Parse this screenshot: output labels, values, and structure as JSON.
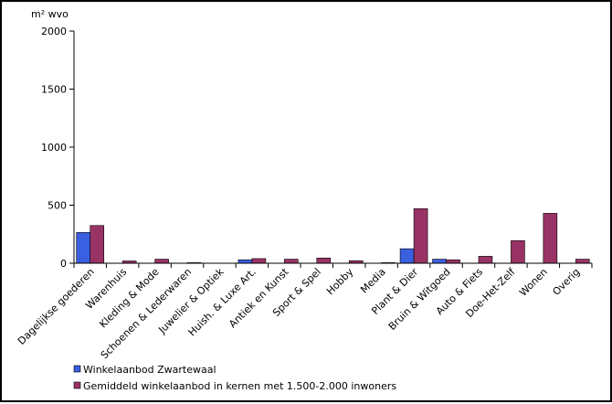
{
  "chart_data": {
    "type": "bar",
    "title": "",
    "ylabel": "m² wvo",
    "xlabel": "",
    "ylim": [
      0,
      2000
    ],
    "yticks": [
      0,
      500,
      1000,
      1500,
      2000
    ],
    "grid": false,
    "legend_position": "bottom-left",
    "categories": [
      "Dagelijkse goederen",
      "Warenhuis",
      "Kleding & Mode",
      "Schoenen & Lederwaren",
      "Juwelier & Optiek",
      "Huish. & Luxe Art.",
      "Antiek en Kunst",
      "Sport & Spel",
      "Hobby",
      "Media",
      "Plant & Dier",
      "Bruin & Witgoed",
      "Auto & Fiets",
      "Doe-Het-Zelf",
      "Wonen",
      "Overig"
    ],
    "series": [
      {
        "name": "Winkelaanbod Zwartewaal",
        "color": "#3a5fe0",
        "values": [
          265,
          0,
          0,
          0,
          0,
          30,
          0,
          0,
          0,
          0,
          125,
          35,
          0,
          0,
          0,
          0
        ]
      },
      {
        "name": "Gemiddeld winkelaanbod in kernen met 1.500-2.000 inwoners",
        "color": "#993366",
        "values": [
          325,
          20,
          35,
          5,
          0,
          40,
          35,
          45,
          22,
          5,
          470,
          30,
          60,
          195,
          430,
          35
        ]
      }
    ]
  }
}
